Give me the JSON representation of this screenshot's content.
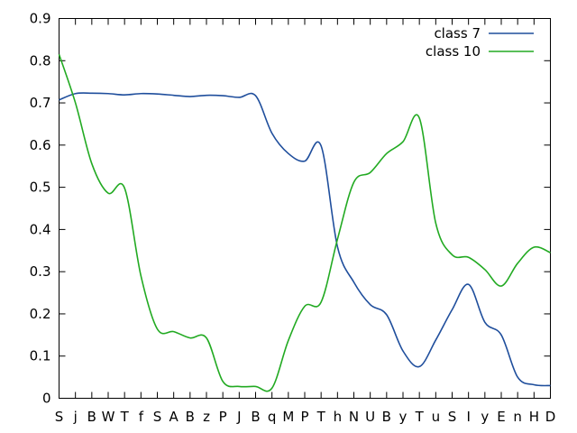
{
  "chart_data": {
    "type": "line",
    "title": "",
    "xlabel": "",
    "ylabel": "",
    "ylim": [
      0,
      0.9
    ],
    "yticks": [
      "0",
      "0.1",
      "0.2",
      "0.3",
      "0.4",
      "0.5",
      "0.6",
      "0.7",
      "0.8",
      "0.9"
    ],
    "categories": [
      "S",
      "j",
      "B",
      "W",
      "T",
      "f",
      "S",
      "A",
      "B",
      "z",
      "P",
      "J",
      "B",
      "q",
      "M",
      "P",
      "T",
      "h",
      "N",
      "U",
      "B",
      "y",
      "T",
      "u",
      "S",
      "I",
      "y",
      "E",
      "n",
      "H",
      "D"
    ],
    "series": [
      {
        "name": "class 7",
        "color": "#1f4e9c",
        "values": [
          0.707,
          0.722,
          0.723,
          0.722,
          0.719,
          0.722,
          0.721,
          0.718,
          0.715,
          0.718,
          0.717,
          0.713,
          0.717,
          0.628,
          0.58,
          0.562,
          0.598,
          0.359,
          0.275,
          0.222,
          0.198,
          0.112,
          0.075,
          0.138,
          0.21,
          0.27,
          0.18,
          0.15,
          0.05,
          0.032,
          0.03
        ]
      },
      {
        "name": "class 10",
        "color": "#22aa22",
        "values": [
          0.815,
          0.7,
          0.556,
          0.486,
          0.498,
          0.29,
          0.164,
          0.158,
          0.143,
          0.143,
          0.04,
          0.028,
          0.028,
          0.024,
          0.137,
          0.218,
          0.228,
          0.377,
          0.512,
          0.535,
          0.58,
          0.608,
          0.664,
          0.415,
          0.34,
          0.334,
          0.305,
          0.266,
          0.32,
          0.358,
          0.345
        ]
      }
    ],
    "grid": false,
    "legend": "top-right"
  }
}
